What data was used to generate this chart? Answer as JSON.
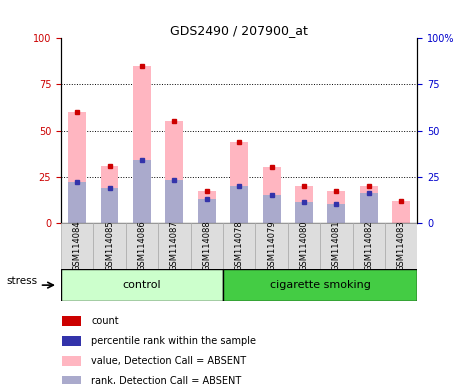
{
  "title": "GDS2490 / 207900_at",
  "samples": [
    "GSM114084",
    "GSM114085",
    "GSM114086",
    "GSM114087",
    "GSM114088",
    "GSM114078",
    "GSM114079",
    "GSM114080",
    "GSM114081",
    "GSM114082",
    "GSM114083"
  ],
  "pink_bar_values": [
    60,
    31,
    85,
    55,
    17,
    44,
    30,
    20,
    17,
    20,
    12
  ],
  "blue_bar_values": [
    22,
    19,
    34,
    23,
    13,
    20,
    15,
    11,
    10,
    16,
    0
  ],
  "red_dot_values": [
    60,
    31,
    85,
    55,
    17,
    44,
    30,
    20,
    17,
    20,
    12
  ],
  "blue_dot_values": [
    22,
    19,
    34,
    23,
    13,
    20,
    15,
    11,
    10,
    16,
    0
  ],
  "ylim_left": [
    0,
    100
  ],
  "ylim_right": [
    0,
    100
  ],
  "left_yticks": [
    0,
    25,
    50,
    75,
    100
  ],
  "right_yticks": [
    0,
    25,
    50,
    75,
    100
  ],
  "right_yticklabels": [
    "0",
    "25",
    "50",
    "75",
    "100%"
  ],
  "grid_lines": [
    25,
    50,
    75
  ],
  "pink_color": "#FFB6C1",
  "blue_color": "#AAAACC",
  "red_marker_color": "#CC0000",
  "blue_marker_color": "#3333AA",
  "left_axis_color": "#CC0000",
  "right_axis_color": "#0000CC",
  "stress_label": "stress",
  "control_label": "control",
  "smoking_label": "cigarette smoking",
  "control_color": "#CCFFCC",
  "smoking_color": "#44CC44",
  "leg_entries": [
    {
      "color": "#CC0000",
      "label": "count"
    },
    {
      "color": "#3333AA",
      "label": "percentile rank within the sample"
    },
    {
      "color": "#FFB6C1",
      "label": "value, Detection Call = ABSENT"
    },
    {
      "color": "#AAAACC",
      "label": "rank, Detection Call = ABSENT"
    }
  ]
}
